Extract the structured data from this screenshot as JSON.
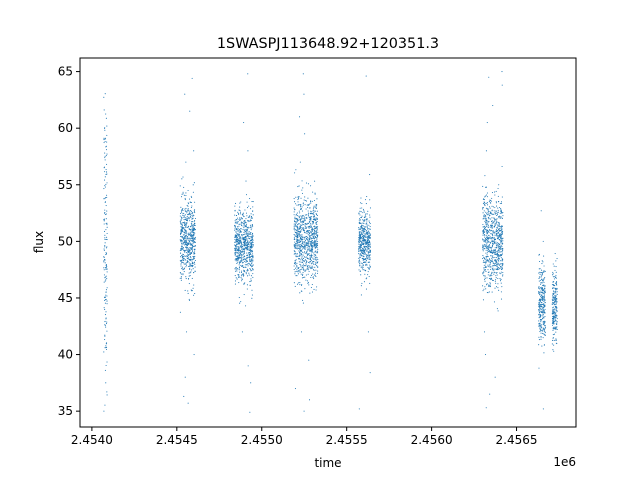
{
  "chart_data": {
    "type": "scatter",
    "title": "1SWASPJ113648.92+120351.3",
    "xlabel": "time",
    "ylabel": "flux",
    "x_offset_label": "1e6",
    "xlim": [
      2.45393,
      2.45685
    ],
    "ylim": [
      33.6,
      66.2
    ],
    "x_ticks": [
      2.454,
      2.4545,
      2.455,
      2.4555,
      2.456,
      2.4565
    ],
    "x_tick_labels": [
      "2.4540",
      "2.4545",
      "2.4550",
      "2.4555",
      "2.4560",
      "2.4565"
    ],
    "y_ticks": [
      35,
      40,
      45,
      50,
      55,
      60,
      65
    ],
    "y_tick_labels": [
      "35",
      "40",
      "45",
      "50",
      "55",
      "60",
      "65"
    ],
    "grid": false,
    "marker_color": "#1f77b4",
    "clusters": [
      {
        "x_range": [
          2.45407,
          2.45409
        ],
        "y_center": 50,
        "spread": 6,
        "outlier_y": [
          58.1,
          56.8,
          55.7,
          52.0,
          37.5,
          35.0
        ]
      },
      {
        "x_range": [
          2.45452,
          2.45461
        ],
        "y_center": 50,
        "spread": 1.8,
        "outlier_y": [
          64.4,
          63.0,
          61.5,
          58.0,
          57.0,
          42.0,
          40.0,
          38.0,
          36.3,
          35.7
        ]
      },
      {
        "x_range": [
          2.45484,
          2.45495
        ],
        "y_center": 49.7,
        "spread": 1.6,
        "outlier_y": [
          64.8,
          60.5,
          58.0,
          42.0,
          39.0,
          37.5,
          34.9
        ]
      },
      {
        "x_range": [
          2.45519,
          2.45533
        ],
        "y_center": 50.2,
        "spread": 1.8,
        "outlier_y": [
          64.8,
          63.0,
          61.0,
          59.5,
          57.0,
          42.0,
          39.5,
          37.0,
          36.0,
          35.0
        ]
      },
      {
        "x_range": [
          2.45557,
          2.45564
        ],
        "y_center": 50,
        "spread": 1.4,
        "outlier_y": [
          64.6,
          55.9,
          42.0,
          38.4,
          35.2
        ]
      },
      {
        "x_range": [
          2.4563,
          2.45642
        ],
        "y_center": 50,
        "spread": 2.0,
        "outlier_y": [
          65.0,
          64.5,
          63.8,
          62.0,
          60.5,
          58.0,
          42.0,
          40.0,
          38.0,
          36.5,
          35.3
        ]
      },
      {
        "x_range": [
          2.45663,
          2.45667
        ],
        "y_center": 44.5,
        "spread": 1.6,
        "outlier_y": [
          52.7,
          50.0,
          38.8,
          35.2
        ]
      },
      {
        "x_range": [
          2.45671,
          2.45674
        ],
        "y_center": 44.4,
        "spread": 1.5,
        "outlier_y": [
          48.0,
          41.0
        ]
      }
    ]
  }
}
